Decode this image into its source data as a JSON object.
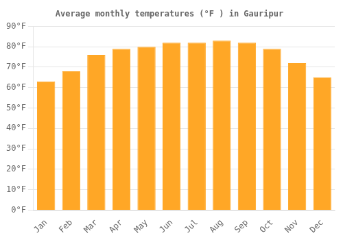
{
  "chart_data": {
    "type": "bar",
    "title": "Average monthly temperatures (°F ) in Gauripur",
    "categories": [
      "Jan",
      "Feb",
      "Mar",
      "Apr",
      "May",
      "Jun",
      "Jul",
      "Aug",
      "Sep",
      "Oct",
      "Nov",
      "Dec"
    ],
    "values": [
      63,
      68,
      76,
      79,
      80,
      82,
      82,
      83,
      82,
      79,
      72,
      65
    ],
    "color": "#FFA726",
    "ylim": [
      0,
      90
    ],
    "yticks": [
      {
        "value": 0,
        "label": "0°F"
      },
      {
        "value": 10,
        "label": "10°F"
      },
      {
        "value": 20,
        "label": "20°F"
      },
      {
        "value": 30,
        "label": "30°F"
      },
      {
        "value": 40,
        "label": "40°F"
      },
      {
        "value": 50,
        "label": "50°F"
      },
      {
        "value": 60,
        "label": "60°F"
      },
      {
        "value": 70,
        "label": "70°F"
      },
      {
        "value": 80,
        "label": "80°F"
      },
      {
        "value": 90,
        "label": "90°F"
      }
    ],
    "grid": "y"
  }
}
